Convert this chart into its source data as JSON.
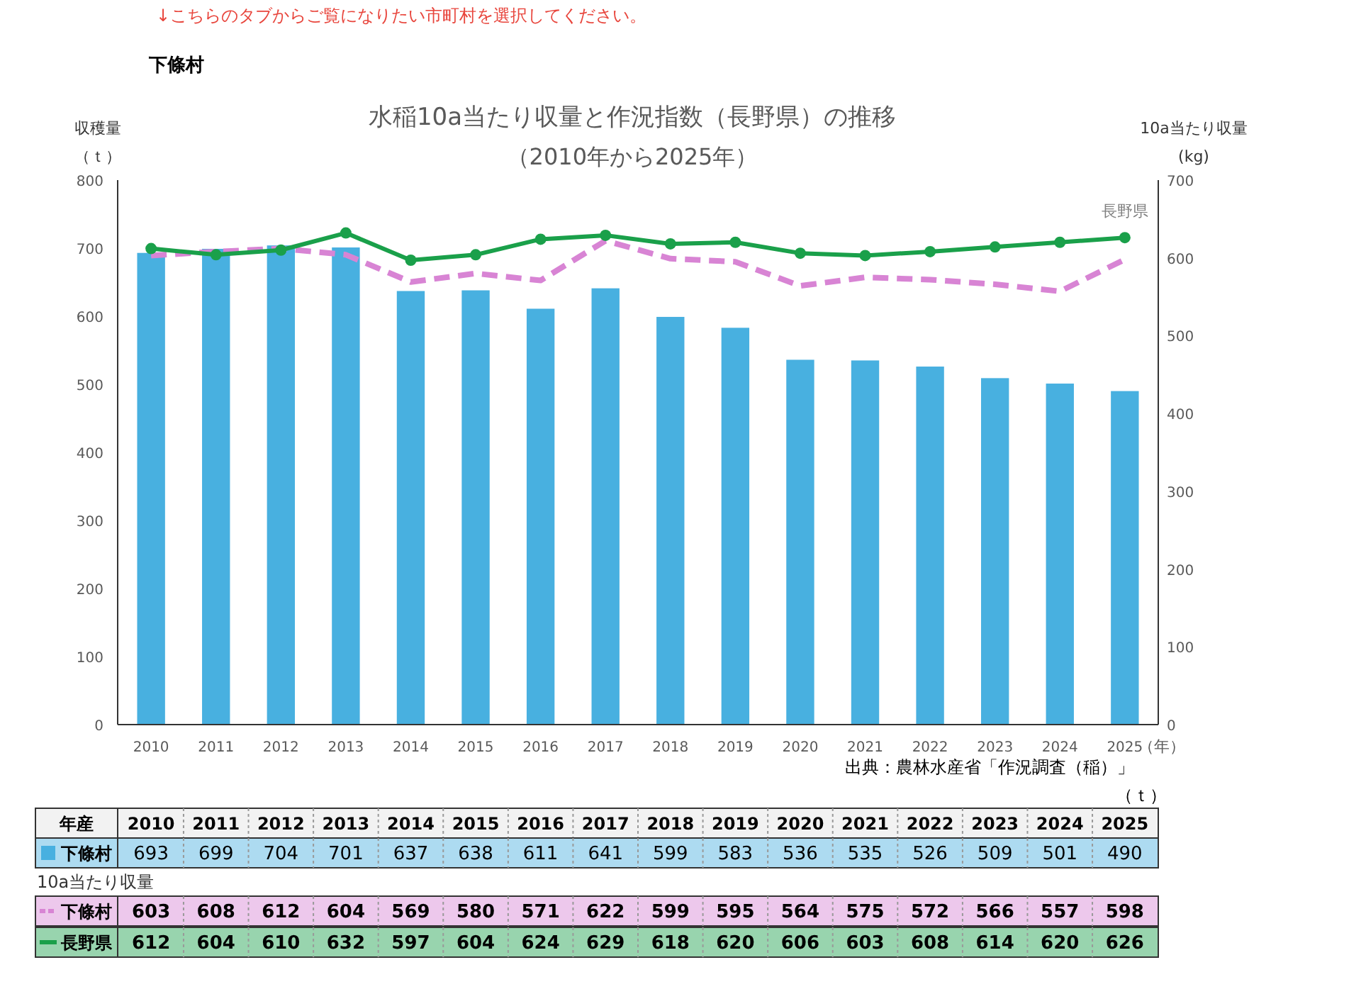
{
  "chart_data": {
    "type": "bar",
    "title": "水稲10a当たり収量と作況指数（長野県）の推移",
    "subtitle": "（2010年から2025年）",
    "xlabel": "（年）",
    "ylabel": "収穫量（ｔ）",
    "y2label": "10a当たり収量(kg)",
    "categories": [
      "2010",
      "2011",
      "2012",
      "2013",
      "2014",
      "2015",
      "2016",
      "2017",
      "2018",
      "2019",
      "2020",
      "2021",
      "2022",
      "2023",
      "2024",
      "2025"
    ],
    "series": [
      {
        "name": "下條村",
        "color": "#48b0e0",
        "values": [
          693,
          699,
          704,
          701,
          637,
          638,
          611,
          641,
          599,
          583,
          536,
          535,
          526,
          509,
          501,
          490
        ]
      },
      {
        "name": "下條村",
        "type": "line",
        "axis": "y2",
        "color": "#d884d4",
        "line_style": "dashed",
        "marker": "none",
        "values": [
          603,
          608,
          612,
          604,
          569,
          580,
          571,
          622,
          599,
          595,
          564,
          575,
          572,
          566,
          557,
          598
        ]
      },
      {
        "name": "長野県",
        "type": "line",
        "axis": "y2",
        "color": "#1aa04a",
        "line_style": "solid",
        "marker": "circle",
        "values": [
          612,
          604,
          610,
          632,
          597,
          604,
          624,
          629,
          618,
          620,
          606,
          603,
          608,
          614,
          620,
          626
        ]
      }
    ],
    "ylim": [
      0,
      800
    ],
    "yticks": [
      0,
      100,
      200,
      300,
      400,
      500,
      600,
      700,
      800
    ],
    "y2lim": [
      0,
      700
    ],
    "y2ticks": [
      0,
      100,
      200,
      300,
      400,
      500,
      600,
      700
    ],
    "data_labels": true,
    "legend": "bottom",
    "annotations": [
      "↓こちらのタブからご覧になりたい市町村を選択してください。",
      "下條村",
      "出典：農林水産省「作況調査（稲）」",
      "年産",
      "（ｔ）",
      "10a当たり収量"
    ]
  }
}
